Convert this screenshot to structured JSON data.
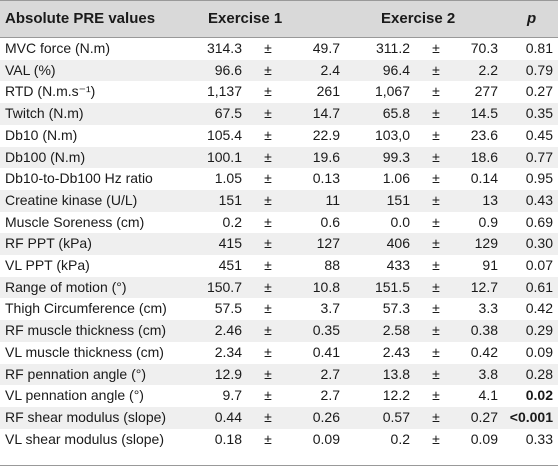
{
  "headers": {
    "label": "Absolute PRE values",
    "ex1": "Exercise 1",
    "ex2": "Exercise 2",
    "p": "p"
  },
  "pm": "±",
  "rows": [
    {
      "label": "MVC force (N.m)",
      "m1": "314.3",
      "sd1": "49.7",
      "m2": "311.2",
      "sd2": "70.3",
      "p": "0.81",
      "bold": false
    },
    {
      "label": "VAL (%)",
      "m1": "96.6",
      "sd1": "2.4",
      "m2": "96.4",
      "sd2": "2.2",
      "p": "0.79",
      "bold": false
    },
    {
      "label": "RTD (N.m.s⁻¹)",
      "m1": "1,137",
      "sd1": "261",
      "m2": "1,067",
      "sd2": "277",
      "p": "0.27",
      "bold": false
    },
    {
      "label": "Twitch (N.m)",
      "m1": "67.5",
      "sd1": "14.7",
      "m2": "65.8",
      "sd2": "14.5",
      "p": "0.35",
      "bold": false
    },
    {
      "label": "Db10 (N.m)",
      "m1": "105.4",
      "sd1": "22.9",
      "m2": "103,0",
      "sd2": "23.6",
      "p": "0.45",
      "bold": false
    },
    {
      "label": "Db100 (N.m)",
      "m1": "100.1",
      "sd1": "19.6",
      "m2": "99.3",
      "sd2": "18.6",
      "p": "0.77",
      "bold": false
    },
    {
      "label": "Db10-to-Db100 Hz ratio",
      "m1": "1.05",
      "sd1": "0.13",
      "m2": "1.06",
      "sd2": "0.14",
      "p": "0.95",
      "bold": false
    },
    {
      "label": "Creatine kinase (U/L)",
      "m1": "151",
      "sd1": "11",
      "m2": "151",
      "sd2": "13",
      "p": "0.43",
      "bold": false
    },
    {
      "label": "Muscle Soreness (cm)",
      "m1": "0.2",
      "sd1": "0.6",
      "m2": "0.0",
      "sd2": "0.9",
      "p": "0.69",
      "bold": false
    },
    {
      "label": "RF PPT (kPa)",
      "m1": "415",
      "sd1": "127",
      "m2": "406",
      "sd2": "129",
      "p": "0.30",
      "bold": false
    },
    {
      "label": "VL PPT (kPa)",
      "m1": "451",
      "sd1": "88",
      "m2": "433",
      "sd2": "91",
      "p": "0.07",
      "bold": false
    },
    {
      "label": "Range of motion (°)",
      "m1": "150.7",
      "sd1": "10.8",
      "m2": "151.5",
      "sd2": "12.7",
      "p": "0.61",
      "bold": false
    },
    {
      "label": "Thigh Circumference (cm)",
      "m1": "57.5",
      "sd1": "3.7",
      "m2": "57.3",
      "sd2": "3.3",
      "p": "0.42",
      "bold": false
    },
    {
      "label": "RF muscle thickness (cm)",
      "m1": "2.46",
      "sd1": "0.35",
      "m2": "2.58",
      "sd2": "0.38",
      "p": "0.29",
      "bold": false
    },
    {
      "label": "VL muscle thickness (cm)",
      "m1": "2.34",
      "sd1": "0.41",
      "m2": "2.43",
      "sd2": "0.42",
      "p": "0.09",
      "bold": false
    },
    {
      "label": "RF pennation angle (°)",
      "m1": "12.9",
      "sd1": "2.7",
      "m2": "13.8",
      "sd2": "3.8",
      "p": "0.28",
      "bold": false
    },
    {
      "label": "VL pennation angle (°)",
      "m1": "9.7",
      "sd1": "2.7",
      "m2": "12.2",
      "sd2": "4.1",
      "p": "0.02",
      "bold": true
    },
    {
      "label": "RF shear modulus (slope)",
      "m1": "0.44",
      "sd1": "0.26",
      "m2": "0.57",
      "sd2": "0.27",
      "p": "<0.001",
      "bold": true
    },
    {
      "label": "VL shear modulus (slope)",
      "m1": "0.18",
      "sd1": "0.09",
      "m2": "0.2",
      "sd2": "0.09",
      "p": "0.33",
      "bold": false
    }
  ]
}
